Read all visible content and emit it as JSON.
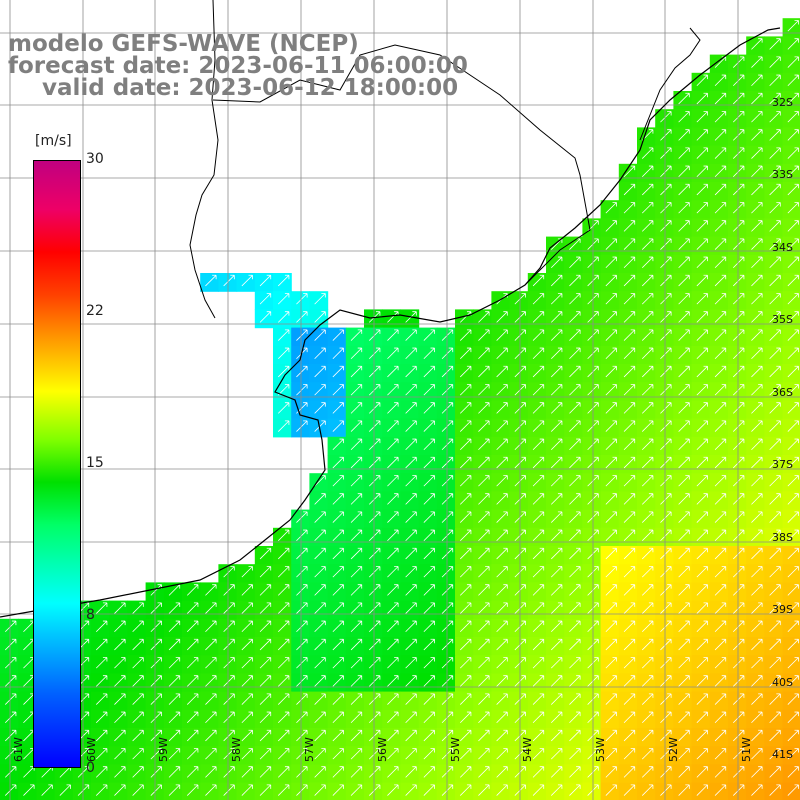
{
  "header": {
    "line1": "modelo GEFS-WAVE (NCEP)",
    "line2": "forecast date: 2023-06-11 06:00:00",
    "line3": "valid date: 2023-06-12 18:00:00"
  },
  "colorbar": {
    "unit": "[m/s]",
    "ticks": [
      "30",
      "22",
      "15",
      "8",
      "0"
    ],
    "colors": [
      "#0000ff",
      "#00ffff",
      "#00e000",
      "#ffff00",
      "#ff0000",
      "#c00080"
    ]
  },
  "grid": {
    "lon_labels": [
      "61W",
      "60W",
      "59W",
      "58W",
      "57W",
      "56W",
      "55W",
      "54W",
      "53W",
      "52W",
      "51W"
    ],
    "lat_labels": [
      "32S",
      "33S",
      "34S",
      "35S",
      "36S",
      "37S",
      "38S",
      "39S",
      "40S",
      "41S"
    ]
  },
  "colors": {
    "land": "#ffffff",
    "coast": "#000000",
    "grid_line": "#8c8c8c",
    "arrow": "#ffffff",
    "title_text": "#7f7f7f"
  }
}
